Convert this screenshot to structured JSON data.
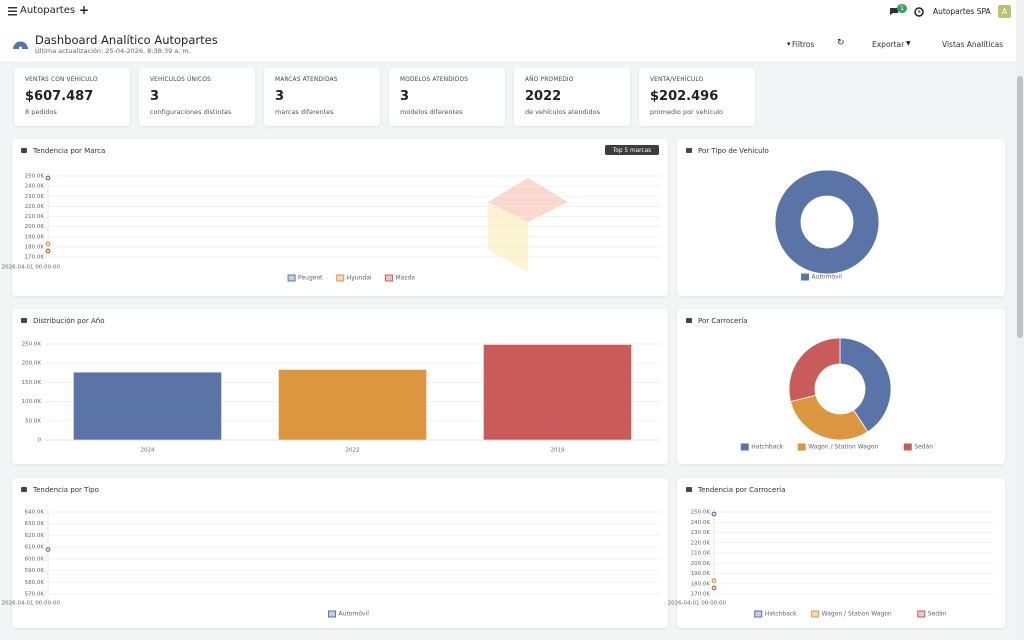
{
  "topbar": {
    "app": "Autopartes",
    "notifications": "1",
    "company": "Autopartes SPA",
    "avatar": "A"
  },
  "header": {
    "title": "Dashboard Analítico Autopartes",
    "updated": "Última actualización: 25-04-2026, 8:38:39 a. m."
  },
  "toolbar": [
    "Filtros",
    "Exportar",
    "Vistas Analíticas"
  ],
  "kpis": [
    {
      "label": "VENTAS CON VEHÍCULO",
      "value": "$607.487",
      "note": "8 pedidos"
    },
    {
      "label": "VEHÍCULOS ÚNICOS",
      "value": "3",
      "note": "configuraciones distintas"
    },
    {
      "label": "MARCAS ATENDIDAS",
      "value": "3",
      "note": "marcas diferentes"
    },
    {
      "label": "MODELOS ATENDIDOS",
      "value": "3",
      "note": "modelos diferentes"
    },
    {
      "label": "AÑO PROMEDIO",
      "value": "2022",
      "note": "de vehículos atendidos"
    },
    {
      "label": "VENTA/VEHÍCULO",
      "value": "$202.496",
      "note": "promedio por vehículo"
    }
  ],
  "chart_data": [
    {
      "type": "line",
      "title": "Tendencia por Marca",
      "badge": "Top 5 marcas",
      "x": [
        "2026-04-01 00:00:00"
      ],
      "series": [
        {
          "name": "Peugeot",
          "color": "#5b74a8",
          "values": [
            248000
          ]
        },
        {
          "name": "Hyundai",
          "color": "#dd9640",
          "values": [
            183000
          ]
        },
        {
          "name": "Mazda",
          "color": "#c95b5b",
          "values": [
            176000
          ]
        }
      ],
      "ylim": [
        170000,
        250000
      ],
      "yticks": [
        {
          "value": 170000,
          "label": "170.0K"
        },
        {
          "value": 180000,
          "label": "180.0K"
        },
        {
          "value": 190000,
          "label": "190.0K"
        },
        {
          "value": 200000,
          "label": "200.0K"
        },
        {
          "value": 210000,
          "label": "210.0K"
        },
        {
          "value": 220000,
          "label": "220.0K"
        },
        {
          "value": 230000,
          "label": "230.0K"
        },
        {
          "value": 240000,
          "label": "240.0K"
        },
        {
          "value": 250000,
          "label": "250.0K"
        }
      ],
      "grid": true
    },
    {
      "type": "pie",
      "title": "Por Tipo de Vehículo",
      "categories": [
        "Automóvil"
      ],
      "values": [
        100
      ],
      "colors": [
        "#5b74a8"
      ]
    },
    {
      "type": "bar",
      "title": "Distribución por Año",
      "categories": [
        "2024",
        "2022",
        "2019"
      ],
      "values": [
        176000,
        183000,
        248000
      ],
      "colors": [
        "#5b74a8",
        "#dd9640",
        "#c95b5b"
      ],
      "ylim": [
        0,
        250000
      ],
      "yticks": [
        0,
        {
          "value": 50000,
          "label": "50.0K"
        },
        {
          "value": 100000,
          "label": "100.0K"
        },
        {
          "value": 150000,
          "label": "150.0K"
        },
        {
          "value": 200000,
          "label": "200.0K"
        },
        {
          "value": 250000,
          "label": "250.0K"
        }
      ],
      "grid": true
    },
    {
      "type": "pie",
      "title": "Por Carrocería",
      "categories": [
        "Hatchback",
        "Wagon / Station Wagon",
        "Sedán"
      ],
      "values": [
        248000,
        183000,
        176000
      ],
      "colors": [
        "#5b74a8",
        "#dd9640",
        "#c95b5b"
      ]
    },
    {
      "type": "line",
      "title": "Tendencia por Tipo",
      "x": [
        "2026-04-01 00:00:00"
      ],
      "series": [
        {
          "name": "Automóvil",
          "color": "#5b74a8",
          "values": [
            608000
          ]
        }
      ],
      "ylim": [
        570000,
        640000
      ],
      "yticks": [
        {
          "value": 570000,
          "label": "570.0K"
        },
        {
          "value": 580000,
          "label": "580.0K"
        },
        {
          "value": 590000,
          "label": "590.0K"
        },
        {
          "value": 600000,
          "label": "600.0K"
        },
        {
          "value": 610000,
          "label": "610.0K"
        },
        {
          "value": 620000,
          "label": "620.0K"
        },
        {
          "value": 630000,
          "label": "630.0K"
        },
        {
          "value": 640000,
          "label": "640.0K"
        }
      ],
      "grid": true
    },
    {
      "type": "line",
      "title": "Tendencia por Carrocería",
      "x": [
        "2026-04-01 00:00:00"
      ],
      "series": [
        {
          "name": "Hatchback",
          "color": "#5b74a8",
          "values": [
            248000
          ]
        },
        {
          "name": "Wagon / Station Wagon",
          "color": "#dd9640",
          "values": [
            183000
          ]
        },
        {
          "name": "Sedán",
          "color": "#c95b5b",
          "values": [
            176000
          ]
        }
      ],
      "ylim": [
        170000,
        250000
      ],
      "yticks": [
        {
          "value": 170000,
          "label": "170.0K"
        },
        {
          "value": 180000,
          "label": "180.0K"
        },
        {
          "value": 190000,
          "label": "190.0K"
        },
        {
          "value": 200000,
          "label": "200.0K"
        },
        {
          "value": 210000,
          "label": "210.0K"
        },
        {
          "value": 220000,
          "label": "220.0K"
        },
        {
          "value": 230000,
          "label": "230.0K"
        },
        {
          "value": 240000,
          "label": "240.0K"
        },
        {
          "value": 250000,
          "label": "250.0K"
        }
      ],
      "grid": true
    }
  ]
}
